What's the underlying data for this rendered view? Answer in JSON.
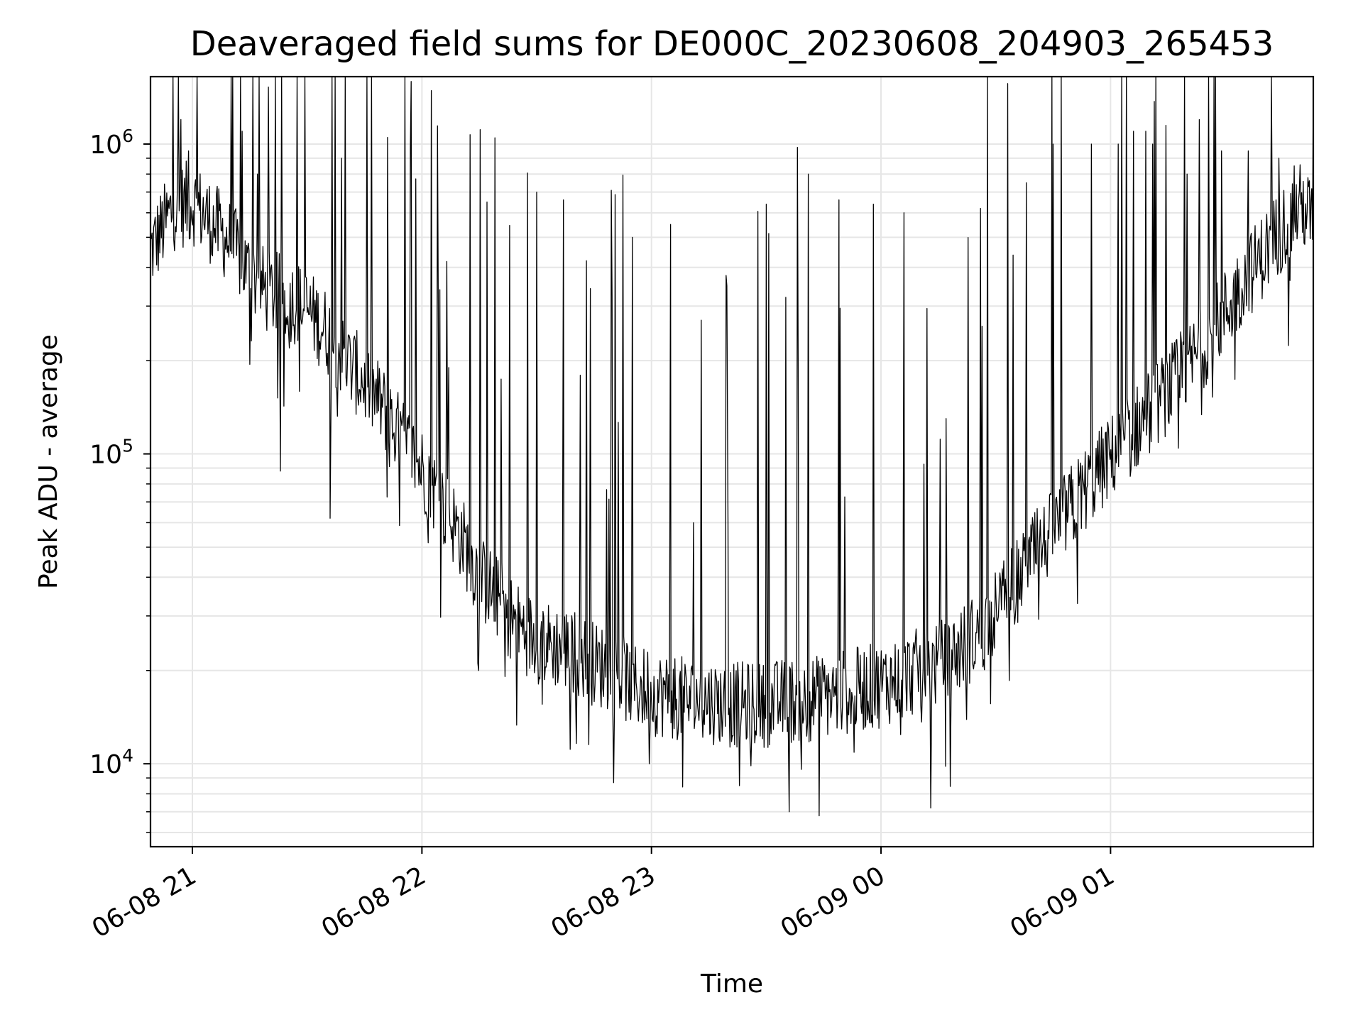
{
  "chart_data": {
    "type": "line",
    "title": "Deaveraged field sums for DE000C_20230608_204903_265453",
    "xlabel": "Time",
    "ylabel": "Peak ADU - average",
    "yscale": "log",
    "ylim": [
      5400,
      1650000
    ],
    "xlim": [
      "2023-06-08 20:49:03",
      "2023-06-09 01:53:00"
    ],
    "x_ticks": [
      {
        "label": "06-08 21",
        "value": "2023-06-08 21:00"
      },
      {
        "label": "06-08 22",
        "value": "2023-06-08 22:00"
      },
      {
        "label": "06-08 23",
        "value": "2023-06-08 23:00"
      },
      {
        "label": "06-09 00",
        "value": "2023-06-09 00:00"
      },
      {
        "label": "06-09 01",
        "value": "2023-06-09 01:00"
      }
    ],
    "y_ticks": [
      {
        "base": "10",
        "exp": "4",
        "value": 10000
      },
      {
        "base": "10",
        "exp": "5",
        "value": 100000
      },
      {
        "base": "10",
        "exp": "6",
        "value": 1000000
      }
    ],
    "grid": true,
    "line_color": "#000000",
    "grid_color": "#e6e6e6",
    "series": [
      {
        "x": [
          "2023-06-08 20:49:03",
          "2023-06-08 20:55",
          "2023-06-08 21:00",
          "2023-06-08 21:05",
          "2023-06-08 21:10",
          "2023-06-08 21:15",
          "2023-06-08 21:20",
          "2023-06-08 21:25",
          "2023-06-08 21:30",
          "2023-06-08 21:35",
          "2023-06-08 21:40",
          "2023-06-08 21:45",
          "2023-06-08 21:50",
          "2023-06-08 21:55",
          "2023-06-08 22:00",
          "2023-06-08 22:05",
          "2023-06-08 22:10",
          "2023-06-08 22:15",
          "2023-06-08 22:20",
          "2023-06-08 22:25",
          "2023-06-08 22:30",
          "2023-06-08 22:35",
          "2023-06-08 22:40",
          "2023-06-08 22:45",
          "2023-06-08 22:50",
          "2023-06-08 22:55",
          "2023-06-08 23:00",
          "2023-06-08 23:05",
          "2023-06-08 23:10",
          "2023-06-08 23:15",
          "2023-06-08 23:20",
          "2023-06-08 23:25",
          "2023-06-08 23:30",
          "2023-06-08 23:35",
          "2023-06-08 23:40",
          "2023-06-08 23:45",
          "2023-06-08 23:50",
          "2023-06-08 23:55",
          "2023-06-09 00:00",
          "2023-06-09 00:05",
          "2023-06-09 00:10",
          "2023-06-09 00:15",
          "2023-06-09 00:20",
          "2023-06-09 00:25",
          "2023-06-09 00:30",
          "2023-06-09 00:35",
          "2023-06-09 00:40",
          "2023-06-09 00:45",
          "2023-06-09 00:50",
          "2023-06-09 00:55",
          "2023-06-09 01:00",
          "2023-06-09 01:05",
          "2023-06-09 01:10",
          "2023-06-09 01:15",
          "2023-06-09 01:20",
          "2023-06-09 01:25",
          "2023-06-09 01:30",
          "2023-06-09 01:35",
          "2023-06-09 01:40",
          "2023-06-09 01:45",
          "2023-06-09 01:50",
          "2023-06-09 01:53"
        ],
        "y": [
          450000,
          620000,
          650000,
          560000,
          480000,
          380000,
          330000,
          320000,
          290000,
          250000,
          200000,
          170000,
          140000,
          110000,
          90000,
          70000,
          55000,
          40000,
          34000,
          28000,
          25000,
          24000,
          23000,
          21000,
          20000,
          18000,
          17000,
          16500,
          16000,
          16000,
          15500,
          15500,
          15500,
          16000,
          16000,
          16500,
          17000,
          17500,
          18000,
          19000,
          20000,
          21000,
          23000,
          26000,
          31000,
          38000,
          47000,
          56000,
          68000,
          82000,
          97000,
          115000,
          135000,
          160000,
          190000,
          230000,
          290000,
          360000,
          440000,
          540000,
          640000,
          560000
        ],
        "spikes": [
          {
            "x": "2023-06-08 20:57",
            "y": 1200000
          },
          {
            "x": "2023-06-08 20:59",
            "y": 950000
          },
          {
            "x": "2023-06-08 21:13",
            "y": 1100000
          },
          {
            "x": "2023-06-08 21:17",
            "y": 800000
          },
          {
            "x": "2023-06-08 21:23",
            "y": 88000
          },
          {
            "x": "2023-06-08 21:36",
            "y": 62000
          },
          {
            "x": "2023-06-08 21:39",
            "y": 900000
          },
          {
            "x": "2023-06-08 21:51",
            "y": 1050000
          },
          {
            "x": "2023-06-08 22:07",
            "y": 190000
          },
          {
            "x": "2023-06-08 22:17",
            "y": 650000
          },
          {
            "x": "2023-06-08 22:30",
            "y": 700000
          },
          {
            "x": "2023-06-08 22:37",
            "y": 660000
          },
          {
            "x": "2023-06-08 22:43",
            "y": 420000
          },
          {
            "x": "2023-06-08 22:55",
            "y": 500000
          },
          {
            "x": "2023-06-08 23:05",
            "y": 550000
          },
          {
            "x": "2023-06-08 23:13",
            "y": 270000
          },
          {
            "x": "2023-06-08 23:20",
            "y": 60000
          },
          {
            "x": "2023-06-08 23:23",
            "y": 8500
          },
          {
            "x": "2023-06-08 23:30",
            "y": 640000
          },
          {
            "x": "2023-06-08 23:36",
            "y": 7000
          },
          {
            "x": "2023-06-08 23:41",
            "y": 800000
          },
          {
            "x": "2023-06-08 23:49",
            "y": 660000
          },
          {
            "x": "2023-06-08 23:58",
            "y": 640000
          },
          {
            "x": "2023-06-09 00:06",
            "y": 600000
          },
          {
            "x": "2023-06-09 00:13",
            "y": 7200
          },
          {
            "x": "2023-06-09 00:17",
            "y": 130000
          },
          {
            "x": "2023-06-09 00:26",
            "y": 620000
          },
          {
            "x": "2023-06-09 00:38",
            "y": 750000
          },
          {
            "x": "2023-06-09 00:45",
            "y": 1000000
          },
          {
            "x": "2023-06-09 00:55",
            "y": 1000000
          },
          {
            "x": "2023-06-09 01:02",
            "y": 1000000
          },
          {
            "x": "2023-06-09 01:06",
            "y": 1100000
          },
          {
            "x": "2023-06-09 01:11",
            "y": 1000000
          },
          {
            "x": "2023-06-09 01:20",
            "y": 800000
          },
          {
            "x": "2023-06-09 01:29",
            "y": 950000
          },
          {
            "x": "2023-06-09 01:36",
            "y": 950000
          },
          {
            "x": "2023-06-09 01:44",
            "y": 900000
          },
          {
            "x": "2023-06-09 01:48",
            "y": 850000
          }
        ]
      }
    ]
  }
}
